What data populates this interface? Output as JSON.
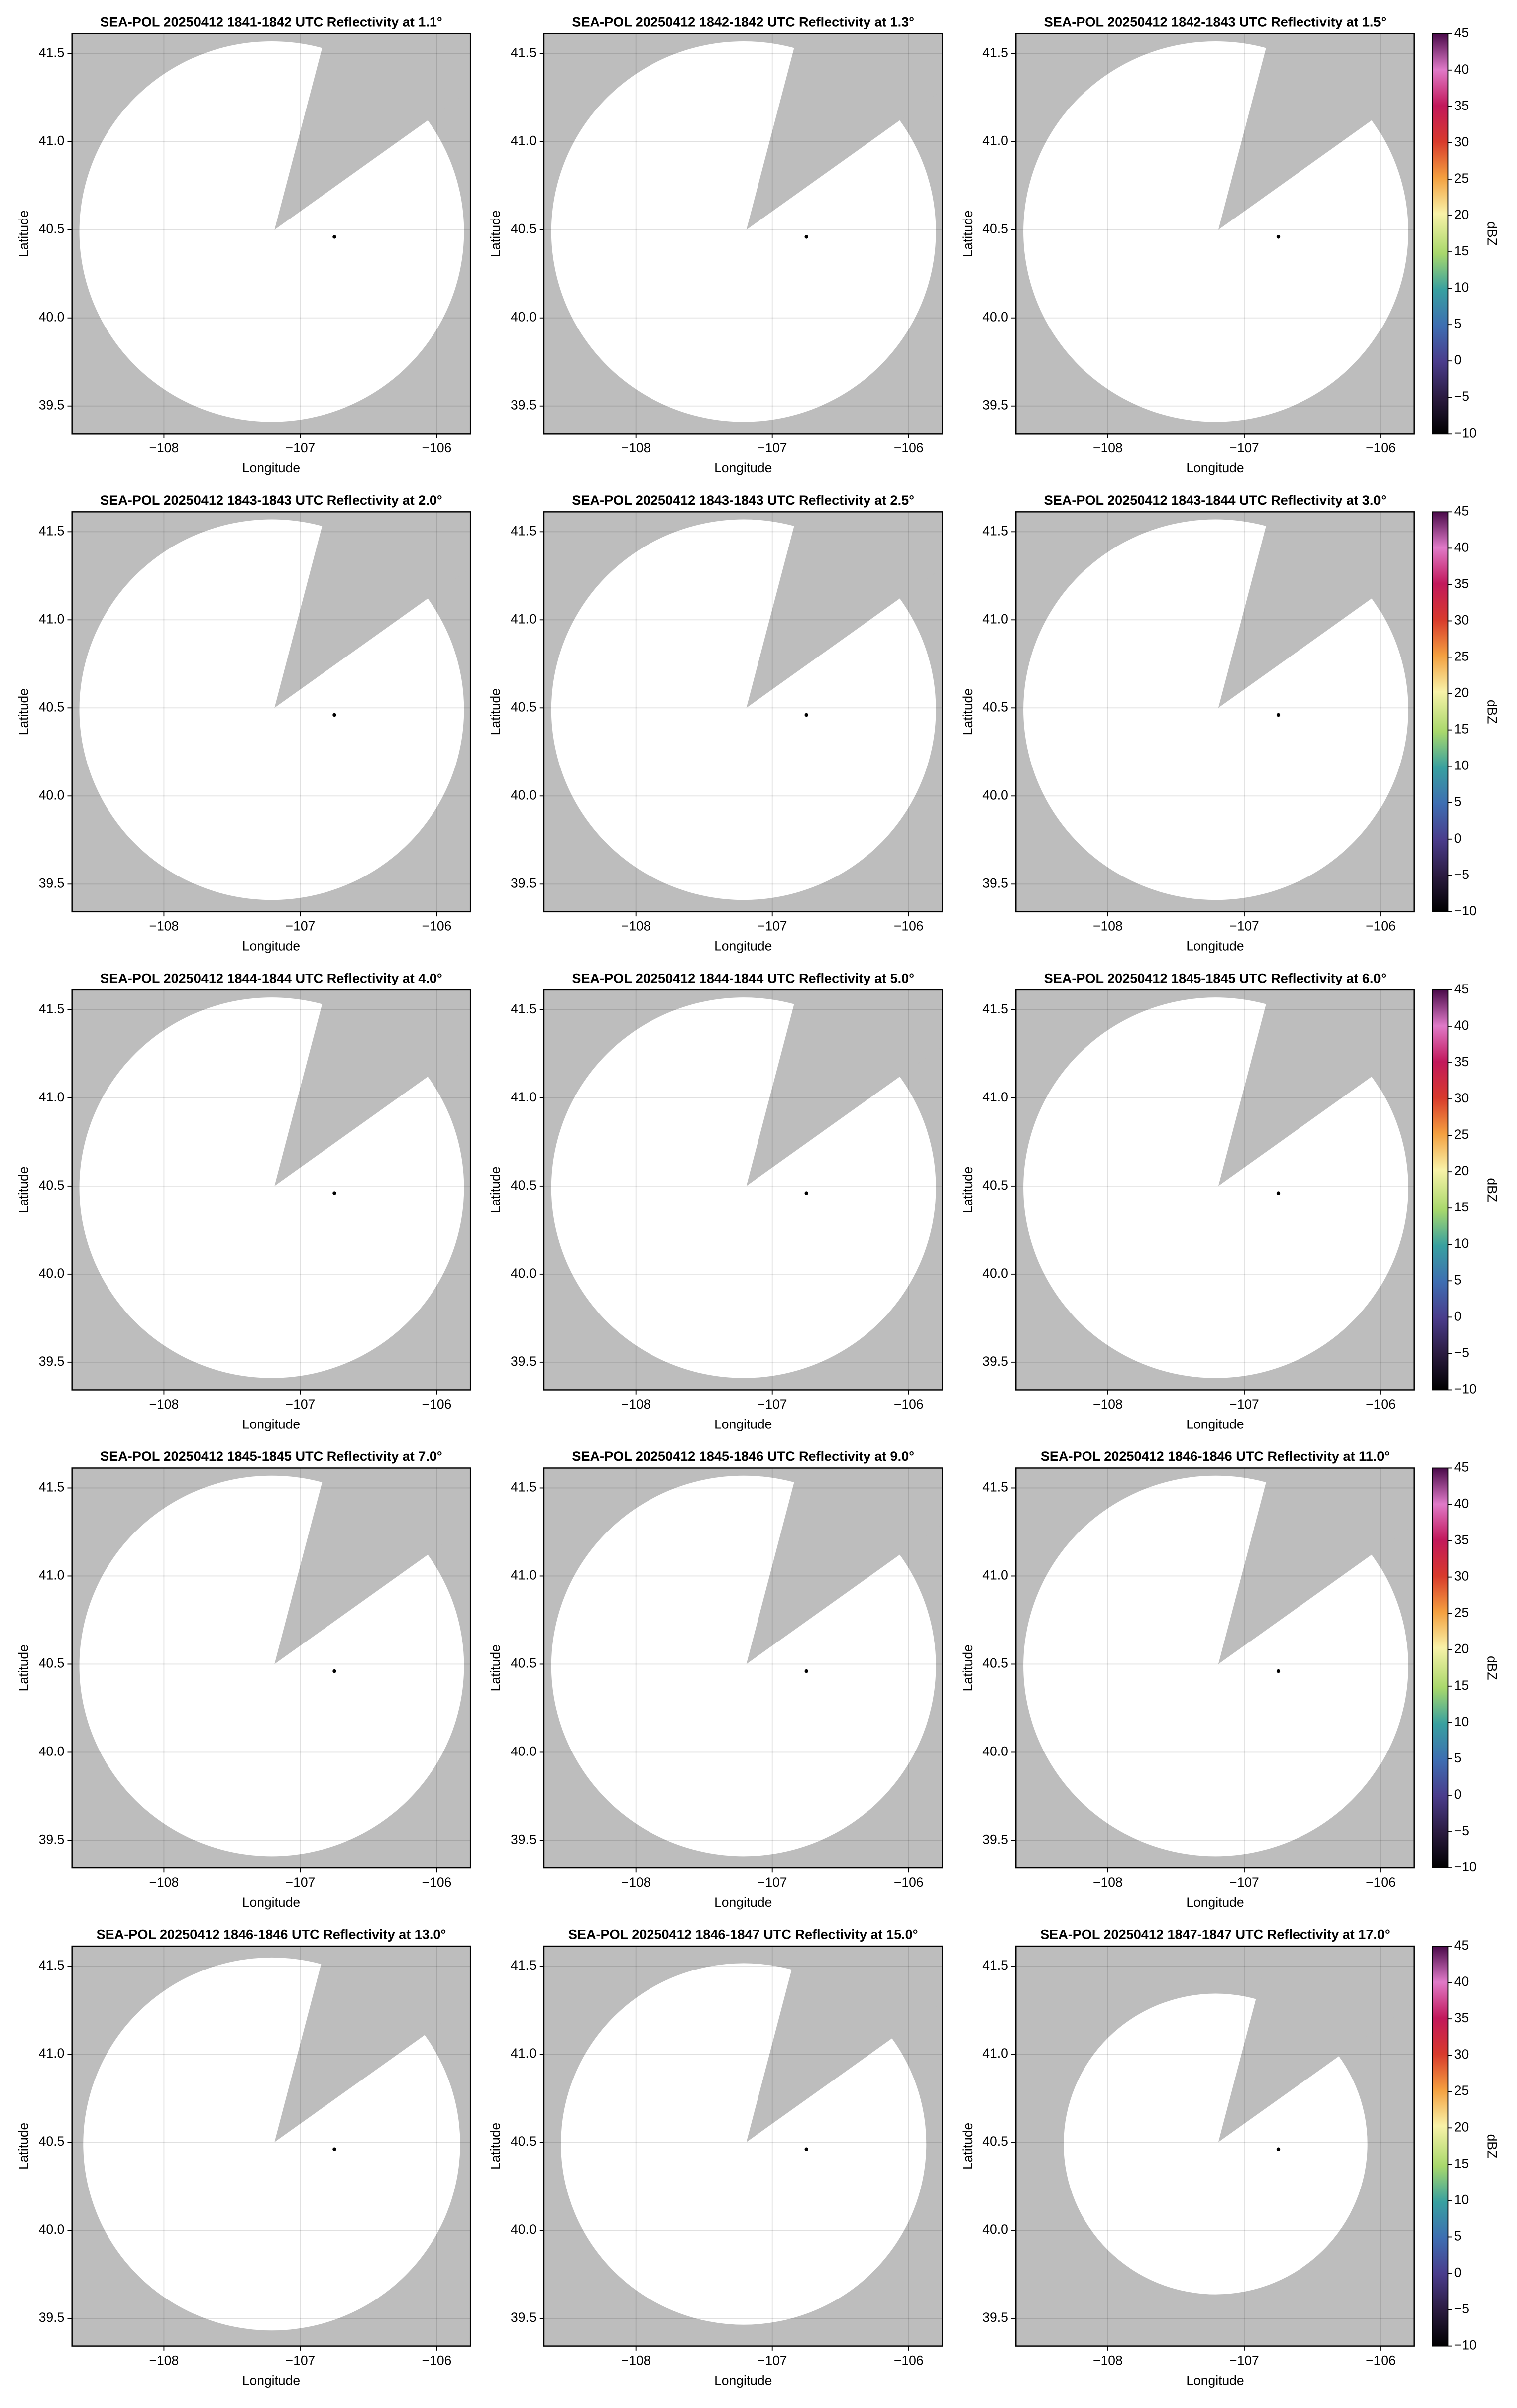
{
  "chart_data": [
    {
      "type": "scatter",
      "title": "SEA-POL 20250412 1841-1842 UTC Reflectivity at 1.1°",
      "x_label": "Longitude",
      "y_label": "Latitude",
      "x": [
        -106.75
      ],
      "values": [
        40.46
      ],
      "color": "#000000",
      "xlim": [
        -108.674,
        -105.753
      ],
      "ylim": [
        39.343,
        41.613
      ],
      "xticks": [
        {
          "value": -108,
          "label": "−108"
        },
        {
          "value": -107,
          "label": "−107"
        },
        {
          "value": -106,
          "label": "−106"
        }
      ],
      "yticks": [
        39.5,
        {
          "value": 40,
          "label": "40.0"
        },
        40.5,
        {
          "value": 41,
          "label": "41.0"
        },
        41.5
      ],
      "grid": true
    },
    {
      "type": "scatter",
      "title": "SEA-POL 20250412 1842-1842 UTC Reflectivity at 1.3°",
      "x_label": "Longitude",
      "y_label": "Latitude",
      "x": [
        -106.75
      ],
      "values": [
        40.46
      ],
      "color": "#000000",
      "xlim": [
        -108.674,
        -105.753
      ],
      "ylim": [
        39.343,
        41.613
      ],
      "xticks": [
        {
          "value": -108,
          "label": "−108"
        },
        {
          "value": -107,
          "label": "−107"
        },
        {
          "value": -106,
          "label": "−106"
        }
      ],
      "yticks": [
        39.5,
        {
          "value": 40,
          "label": "40.0"
        },
        40.5,
        {
          "value": 41,
          "label": "41.0"
        },
        41.5
      ],
      "grid": true
    },
    {
      "type": "scatter",
      "title": "SEA-POL 20250412 1842-1843 UTC Reflectivity at 1.5°",
      "x_label": "Longitude",
      "y_label": "Latitude",
      "x": [
        -106.75
      ],
      "values": [
        40.46
      ],
      "color": "#000000",
      "xlim": [
        -108.674,
        -105.753
      ],
      "ylim": [
        39.343,
        41.613
      ],
      "xticks": [
        {
          "value": -108,
          "label": "−108"
        },
        {
          "value": -107,
          "label": "−107"
        },
        {
          "value": -106,
          "label": "−106"
        }
      ],
      "yticks": [
        39.5,
        {
          "value": 40,
          "label": "40.0"
        },
        40.5,
        {
          "value": 41,
          "label": "41.0"
        },
        41.5
      ],
      "grid": true,
      "colorbar": {
        "label": "dBZ",
        "ylim": [
          -10,
          45
        ],
        "yticks": [
          {
            "value": -10,
            "label": "−10"
          },
          {
            "value": -5,
            "label": "−5"
          },
          0,
          5,
          10,
          15,
          20,
          25,
          30,
          35,
          40,
          45
        ]
      }
    },
    {
      "type": "scatter",
      "title": "SEA-POL 20250412 1843-1843 UTC Reflectivity at 2.0°",
      "x_label": "Longitude",
      "y_label": "Latitude",
      "x": [
        -106.75
      ],
      "values": [
        40.46
      ],
      "color": "#000000",
      "xlim": [
        -108.674,
        -105.753
      ],
      "ylim": [
        39.343,
        41.613
      ],
      "xticks": [
        {
          "value": -108,
          "label": "−108"
        },
        {
          "value": -107,
          "label": "−107"
        },
        {
          "value": -106,
          "label": "−106"
        }
      ],
      "yticks": [
        39.5,
        {
          "value": 40,
          "label": "40.0"
        },
        40.5,
        {
          "value": 41,
          "label": "41.0"
        },
        41.5
      ],
      "grid": true
    },
    {
      "type": "scatter",
      "title": "SEA-POL 20250412 1843-1843 UTC Reflectivity at 2.5°",
      "x_label": "Longitude",
      "y_label": "Latitude",
      "x": [
        -106.75
      ],
      "values": [
        40.46
      ],
      "color": "#000000",
      "xlim": [
        -108.674,
        -105.753
      ],
      "ylim": [
        39.343,
        41.613
      ],
      "xticks": [
        {
          "value": -108,
          "label": "−108"
        },
        {
          "value": -107,
          "label": "−107"
        },
        {
          "value": -106,
          "label": "−106"
        }
      ],
      "yticks": [
        39.5,
        {
          "value": 40,
          "label": "40.0"
        },
        40.5,
        {
          "value": 41,
          "label": "41.0"
        },
        41.5
      ],
      "grid": true
    },
    {
      "type": "scatter",
      "title": "SEA-POL 20250412 1843-1844 UTC Reflectivity at 3.0°",
      "x_label": "Longitude",
      "y_label": "Latitude",
      "x": [
        -106.75
      ],
      "values": [
        40.46
      ],
      "color": "#000000",
      "xlim": [
        -108.674,
        -105.753
      ],
      "ylim": [
        39.343,
        41.613
      ],
      "xticks": [
        {
          "value": -108,
          "label": "−108"
        },
        {
          "value": -107,
          "label": "−107"
        },
        {
          "value": -106,
          "label": "−106"
        }
      ],
      "yticks": [
        39.5,
        {
          "value": 40,
          "label": "40.0"
        },
        40.5,
        {
          "value": 41,
          "label": "41.0"
        },
        41.5
      ],
      "grid": true,
      "colorbar": {
        "label": "dBZ",
        "ylim": [
          -10,
          45
        ],
        "yticks": [
          {
            "value": -10,
            "label": "−10"
          },
          {
            "value": -5,
            "label": "−5"
          },
          0,
          5,
          10,
          15,
          20,
          25,
          30,
          35,
          40,
          45
        ]
      }
    },
    {
      "type": "scatter",
      "title": "SEA-POL 20250412 1844-1844 UTC Reflectivity at 4.0°",
      "x_label": "Longitude",
      "y_label": "Latitude",
      "x": [
        -106.75
      ],
      "values": [
        40.46
      ],
      "color": "#000000",
      "xlim": [
        -108.674,
        -105.753
      ],
      "ylim": [
        39.343,
        41.613
      ],
      "xticks": [
        {
          "value": -108,
          "label": "−108"
        },
        {
          "value": -107,
          "label": "−107"
        },
        {
          "value": -106,
          "label": "−106"
        }
      ],
      "yticks": [
        39.5,
        {
          "value": 40,
          "label": "40.0"
        },
        40.5,
        {
          "value": 41,
          "label": "41.0"
        },
        41.5
      ],
      "grid": true
    },
    {
      "type": "scatter",
      "title": "SEA-POL 20250412 1844-1844 UTC Reflectivity at 5.0°",
      "x_label": "Longitude",
      "y_label": "Latitude",
      "x": [
        -106.75
      ],
      "values": [
        40.46
      ],
      "color": "#000000",
      "xlim": [
        -108.674,
        -105.753
      ],
      "ylim": [
        39.343,
        41.613
      ],
      "xticks": [
        {
          "value": -108,
          "label": "−108"
        },
        {
          "value": -107,
          "label": "−107"
        },
        {
          "value": -106,
          "label": "−106"
        }
      ],
      "yticks": [
        39.5,
        {
          "value": 40,
          "label": "40.0"
        },
        40.5,
        {
          "value": 41,
          "label": "41.0"
        },
        41.5
      ],
      "grid": true
    },
    {
      "type": "scatter",
      "title": "SEA-POL 20250412 1845-1845 UTC Reflectivity at 6.0°",
      "x_label": "Longitude",
      "y_label": "Latitude",
      "x": [
        -106.75
      ],
      "values": [
        40.46
      ],
      "color": "#000000",
      "xlim": [
        -108.674,
        -105.753
      ],
      "ylim": [
        39.343,
        41.613
      ],
      "xticks": [
        {
          "value": -108,
          "label": "−108"
        },
        {
          "value": -107,
          "label": "−107"
        },
        {
          "value": -106,
          "label": "−106"
        }
      ],
      "yticks": [
        39.5,
        {
          "value": 40,
          "label": "40.0"
        },
        40.5,
        {
          "value": 41,
          "label": "41.0"
        },
        41.5
      ],
      "grid": true,
      "colorbar": {
        "label": "dBZ",
        "ylim": [
          -10,
          45
        ],
        "yticks": [
          {
            "value": -10,
            "label": "−10"
          },
          {
            "value": -5,
            "label": "−5"
          },
          0,
          5,
          10,
          15,
          20,
          25,
          30,
          35,
          40,
          45
        ]
      }
    },
    {
      "type": "scatter",
      "title": "SEA-POL 20250412 1845-1845 UTC Reflectivity at 7.0°",
      "x_label": "Longitude",
      "y_label": "Latitude",
      "x": [
        -106.75
      ],
      "values": [
        40.46
      ],
      "color": "#000000",
      "xlim": [
        -108.674,
        -105.753
      ],
      "ylim": [
        39.343,
        41.613
      ],
      "xticks": [
        {
          "value": -108,
          "label": "−108"
        },
        {
          "value": -107,
          "label": "−107"
        },
        {
          "value": -106,
          "label": "−106"
        }
      ],
      "yticks": [
        39.5,
        {
          "value": 40,
          "label": "40.0"
        },
        40.5,
        {
          "value": 41,
          "label": "41.0"
        },
        41.5
      ],
      "grid": true
    },
    {
      "type": "scatter",
      "title": "SEA-POL 20250412 1845-1846 UTC Reflectivity at 9.0°",
      "x_label": "Longitude",
      "y_label": "Latitude",
      "x": [
        -106.75
      ],
      "values": [
        40.46
      ],
      "color": "#000000",
      "xlim": [
        -108.674,
        -105.753
      ],
      "ylim": [
        39.343,
        41.613
      ],
      "xticks": [
        {
          "value": -108,
          "label": "−108"
        },
        {
          "value": -107,
          "label": "−107"
        },
        {
          "value": -106,
          "label": "−106"
        }
      ],
      "yticks": [
        39.5,
        {
          "value": 40,
          "label": "40.0"
        },
        40.5,
        {
          "value": 41,
          "label": "41.0"
        },
        41.5
      ],
      "grid": true
    },
    {
      "type": "scatter",
      "title": "SEA-POL 20250412 1846-1846 UTC Reflectivity at 11.0°",
      "x_label": "Longitude",
      "y_label": "Latitude",
      "x": [
        -106.75
      ],
      "values": [
        40.46
      ],
      "color": "#000000",
      "xlim": [
        -108.674,
        -105.753
      ],
      "ylim": [
        39.343,
        41.613
      ],
      "xticks": [
        {
          "value": -108,
          "label": "−108"
        },
        {
          "value": -107,
          "label": "−107"
        },
        {
          "value": -106,
          "label": "−106"
        }
      ],
      "yticks": [
        39.5,
        {
          "value": 40,
          "label": "40.0"
        },
        40.5,
        {
          "value": 41,
          "label": "41.0"
        },
        41.5
      ],
      "grid": true,
      "colorbar": {
        "label": "dBZ",
        "ylim": [
          -10,
          45
        ],
        "yticks": [
          {
            "value": -10,
            "label": "−10"
          },
          {
            "value": -5,
            "label": "−5"
          },
          0,
          5,
          10,
          15,
          20,
          25,
          30,
          35,
          40,
          45
        ]
      }
    },
    {
      "type": "scatter",
      "title": "SEA-POL 20250412 1846-1846 UTC Reflectivity at 13.0°",
      "x_label": "Longitude",
      "y_label": "Latitude",
      "x": [
        -106.75
      ],
      "values": [
        40.46
      ],
      "color": "#000000",
      "xlim": [
        -108.674,
        -105.753
      ],
      "ylim": [
        39.343,
        41.613
      ],
      "xticks": [
        {
          "value": -108,
          "label": "−108"
        },
        {
          "value": -107,
          "label": "−107"
        },
        {
          "value": -106,
          "label": "−106"
        }
      ],
      "yticks": [
        39.5,
        {
          "value": 40,
          "label": "40.0"
        },
        40.5,
        {
          "value": 41,
          "label": "41.0"
        },
        41.5
      ],
      "grid": true
    },
    {
      "type": "scatter",
      "title": "SEA-POL 20250412 1846-1847 UTC Reflectivity at 15.0°",
      "x_label": "Longitude",
      "y_label": "Latitude",
      "x": [
        -106.75
      ],
      "values": [
        40.46
      ],
      "color": "#000000",
      "xlim": [
        -108.674,
        -105.753
      ],
      "ylim": [
        39.343,
        41.613
      ],
      "xticks": [
        {
          "value": -108,
          "label": "−108"
        },
        {
          "value": -107,
          "label": "−107"
        },
        {
          "value": -106,
          "label": "−106"
        }
      ],
      "yticks": [
        39.5,
        {
          "value": 40,
          "label": "40.0"
        },
        40.5,
        {
          "value": 41,
          "label": "41.0"
        },
        41.5
      ],
      "grid": true
    },
    {
      "type": "scatter",
      "title": "SEA-POL 20250412 1847-1847 UTC Reflectivity at 17.0°",
      "x_label": "Longitude",
      "y_label": "Latitude",
      "x": [
        -106.75
      ],
      "values": [
        40.46
      ],
      "color": "#000000",
      "xlim": [
        -108.674,
        -105.753
      ],
      "ylim": [
        39.343,
        41.613
      ],
      "xticks": [
        {
          "value": -108,
          "label": "−108"
        },
        {
          "value": -107,
          "label": "−107"
        },
        {
          "value": -106,
          "label": "−106"
        }
      ],
      "yticks": [
        39.5,
        {
          "value": 40,
          "label": "40.0"
        },
        40.5,
        {
          "value": 41,
          "label": "41.0"
        },
        41.5
      ],
      "grid": true,
      "colorbar": {
        "label": "dBZ",
        "ylim": [
          -10,
          45
        ],
        "yticks": [
          {
            "value": -10,
            "label": "−10"
          },
          {
            "value": -5,
            "label": "−5"
          },
          0,
          5,
          10,
          15,
          20,
          25,
          30,
          35,
          40,
          45
        ]
      }
    }
  ]
}
